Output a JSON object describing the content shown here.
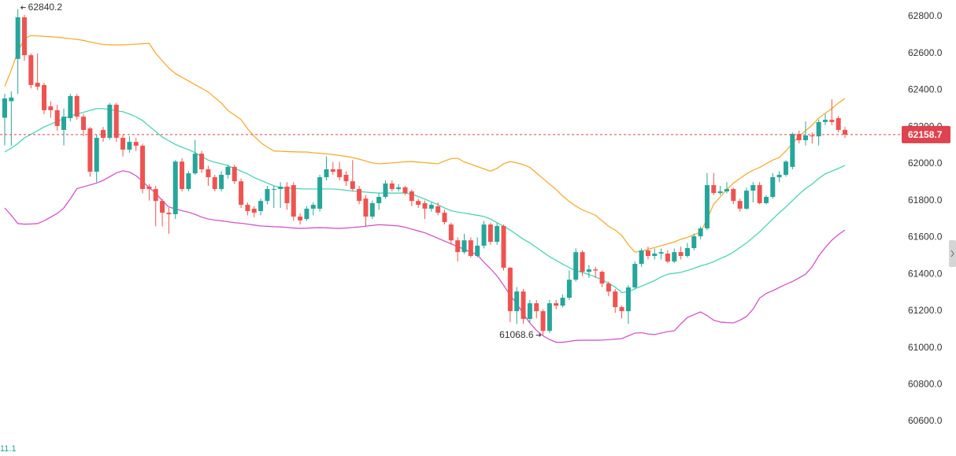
{
  "chart_data": {
    "type": "candlestick",
    "up_color": "#26a69a",
    "down_color": "#ef5350",
    "ylim": [
      60412,
      62890
    ],
    "yticks": [
      {
        "value": 60600,
        "label": "60600.0"
      },
      {
        "value": 60800,
        "label": "60800.0"
      },
      {
        "value": 61000,
        "label": "61000.0"
      },
      {
        "value": 61200,
        "label": "61200.0"
      },
      {
        "value": 61400,
        "label": "61400.0"
      },
      {
        "value": 61600,
        "label": "61600.0"
      },
      {
        "value": 61800,
        "label": "61800.0"
      },
      {
        "value": 62000,
        "label": "62000.0"
      },
      {
        "value": 62200,
        "label": "62200.0"
      },
      {
        "value": 62400,
        "label": "62400.0"
      },
      {
        "value": 62600,
        "label": "62600.0"
      },
      {
        "value": 62800,
        "label": "62800.0"
      }
    ],
    "open": [
      62250,
      62340,
      62570,
      62796,
      62590,
      62440,
      62428,
      62312,
      62291,
      62184,
      62248,
      62368,
      62256,
      62192,
      61957,
      62184,
      62141,
      62321,
      62141,
      62077,
      62119,
      62098,
      61876,
      61863,
      61798,
      61734,
      61726,
      62012,
      61863,
      61948,
      62055,
      61970,
      61927,
      61863,
      61940,
      61983,
      61905,
      61777,
      61756,
      61743,
      61798,
      61863,
      61863,
      61876,
      61884,
      61713,
      61700,
      61756,
      61756,
      61927,
      61970,
      61970,
      61940,
      61905,
      61863,
      61811,
      61713,
      61786,
      61820,
      61893,
      61863,
      61872,
      61850,
      61798,
      61786,
      61756,
      61769,
      61734,
      61670,
      61584,
      61520,
      61584,
      61499,
      61555,
      61670,
      61576,
      61662,
      61435,
      61199,
      61306,
      61157,
      61242,
      61199,
      61092,
      61242,
      61229,
      61272,
      61370,
      61520,
      61413,
      61426,
      61413,
      61349,
      61306,
      61221,
      61199,
      61328,
      61456,
      61529,
      61499,
      61512,
      61512,
      61469,
      61520,
      61499,
      61542,
      61606,
      61649,
      61884,
      61841,
      61850,
      61863,
      61798,
      61756,
      61854,
      61884,
      61786,
      61820,
      61927,
      61940,
      61983,
      62162,
      62128,
      62154,
      62149,
      62227,
      62239,
      62248,
      62184
    ],
    "high": [
      62380,
      62393,
      62840.2,
      62810,
      62600,
      62600,
      62440,
      62340,
      62320,
      62300,
      62380,
      62380,
      62270,
      62200,
      62160,
      62200,
      62330,
      62330,
      62160,
      62150,
      62140,
      62110,
      61890,
      61880,
      61810,
      61760,
      62020,
      62030,
      61960,
      62130,
      62070,
      61990,
      61940,
      61960,
      61995,
      61995,
      61920,
      61790,
      61770,
      61810,
      61880,
      61880,
      61900,
      61900,
      61900,
      61730,
      61770,
      61790,
      61940,
      62040,
      62010,
      62010,
      61960,
      62020,
      61880,
      61830,
      61800,
      61840,
      61910,
      61910,
      61890,
      61880,
      61860,
      61810,
      61800,
      61790,
      61790,
      61750,
      61680,
      61600,
      61620,
      61600,
      61600,
      61690,
      61680,
      61680,
      61670,
      61440,
      61330,
      61320,
      61260,
      61260,
      61210,
      61260,
      61260,
      61290,
      61420,
      61540,
      61530,
      61450,
      61440,
      61420,
      61360,
      61320,
      61230,
      61340,
      61470,
      61540,
      61550,
      61540,
      61540,
      61530,
      61540,
      61550,
      61570,
      61620,
      61660,
      61950,
      61950,
      61880,
      61900,
      61870,
      61810,
      61870,
      61900,
      61900,
      61830,
      61950,
      61960,
      62020,
      62170,
      62180,
      62230,
      62170,
      62240,
      62270,
      62350,
      62260,
      62200
    ],
    "low": [
      62100,
      62098,
      62380,
      62560,
      62410,
      62400,
      62270,
      62250,
      62180,
      62100,
      62230,
      62240,
      62150,
      61930,
      61900,
      62120,
      62130,
      62120,
      62040,
      62060,
      62070,
      61840,
      61800,
      61660,
      61660,
      61620,
      61700,
      61850,
      61850,
      61940,
      61950,
      61880,
      61850,
      61850,
      61920,
      61890,
      61760,
      61720,
      61710,
      61720,
      61780,
      61760,
      61760,
      61750,
      61690,
      61670,
      61690,
      61720,
      61740,
      61910,
      61940,
      61910,
      61880,
      61850,
      61780,
      61660,
      61700,
      61750,
      61810,
      61850,
      61850,
      61830,
      61770,
      61760,
      61700,
      61740,
      61720,
      61670,
      61560,
      61470,
      61510,
      61490,
      61490,
      61540,
      61560,
      61560,
      61420,
      61140,
      61130,
      61130,
      61140,
      61160,
      61068.6,
      61080,
      61210,
      61220,
      61260,
      61360,
      61390,
      61380,
      61380,
      61330,
      61280,
      61190,
      61160,
      61130,
      61320,
      61440,
      61480,
      61480,
      61480,
      61460,
      61460,
      61480,
      61490,
      61530,
      61590,
      61640,
      61830,
      61830,
      61840,
      61780,
      61740,
      61750,
      61790,
      61780,
      61780,
      61810,
      61900,
      61930,
      61970,
      62110,
      62100,
      62110,
      62100,
      62210,
      62210,
      62170,
      62140
    ],
    "close": [
      62355,
      62360,
      62796,
      62590,
      62428,
      62419,
      62291,
      62291,
      62205,
      62256,
      62368,
      62256,
      62184,
      61957,
      62141,
      62141,
      62321,
      62141,
      62077,
      62119,
      62098,
      61863,
      61863,
      61798,
      61734,
      61726,
      62012,
      61863,
      61948,
      62055,
      61970,
      61927,
      61863,
      61940,
      61983,
      61905,
      61777,
      61743,
      61734,
      61798,
      61863,
      61863,
      61876,
      61786,
      61713,
      61692,
      61756,
      61777,
      61927,
      61970,
      61957,
      61927,
      61905,
      61863,
      61798,
      61713,
      61786,
      61820,
      61893,
      61863,
      61872,
      61841,
      61798,
      61777,
      61756,
      61777,
      61734,
      61683,
      61584,
      61520,
      61584,
      61499,
      61555,
      61670,
      61576,
      61662,
      61435,
      61199,
      61306,
      61157,
      61242,
      61199,
      61092,
      61242,
      61229,
      61272,
      61370,
      61520,
      61413,
      61426,
      61420,
      61349,
      61306,
      61221,
      61199,
      61328,
      61456,
      61529,
      61499,
      61512,
      61520,
      61469,
      61520,
      61499,
      61542,
      61606,
      61649,
      61884,
      61841,
      61850,
      61863,
      61798,
      61756,
      61854,
      61884,
      61786,
      61820,
      61927,
      61940,
      62012,
      62162,
      62128,
      62154,
      62149,
      62227,
      62239,
      62227,
      62184,
      62158.7
    ],
    "series": [
      {
        "color": "#f5a623",
        "values": [
          62420,
          62510,
          62610,
          62680,
          62697,
          62695,
          62692,
          62690,
          62688,
          62684,
          62680,
          62676,
          62670,
          62662,
          62655,
          62648,
          62646,
          62646,
          62646,
          62648,
          62650,
          62652,
          62654,
          62600,
          62560,
          62520,
          62490,
          62470,
          62450,
          62430,
          62410,
          62390,
          62360,
          62330,
          62290,
          62265,
          62240,
          62190,
          62150,
          62115,
          62090,
          62070,
          62068,
          62066,
          62065,
          62064,
          62064,
          62060,
          62057,
          62054,
          62050,
          62045,
          62040,
          62034,
          62025,
          62015,
          62005,
          62000,
          62002,
          62005,
          62008,
          62011,
          62012,
          62009,
          62006,
          62003,
          62000,
          62015,
          62028,
          62030,
          62010,
          61998,
          61985,
          61972,
          61960,
          61975,
          62000,
          62012,
          62005,
          61995,
          61980,
          61950,
          61920,
          61890,
          61860,
          61825,
          61795,
          61770,
          61750,
          61735,
          61720,
          61690,
          61660,
          61640,
          61610,
          61560,
          61520,
          61525,
          61535,
          61545,
          61555,
          61565,
          61575,
          61590,
          61600,
          61615,
          61627,
          61700,
          61780,
          61820,
          61860,
          61895,
          61920,
          61945,
          61965,
          61980,
          62000,
          62020,
          62034,
          62070,
          62110,
          62150,
          62180,
          62210,
          62248,
          62275,
          62300,
          62330,
          62355
        ]
      },
      {
        "color": "#3fd1ae",
        "values": [
          62064,
          62085,
          62110,
          62141,
          62160,
          62180,
          62200,
          62215,
          62230,
          62245,
          62260,
          62270,
          62280,
          62290,
          62300,
          62300,
          62295,
          62288,
          62283,
          62270,
          62255,
          62235,
          62205,
          62175,
          62145,
          62125,
          62105,
          62090,
          62077,
          62060,
          62040,
          62020,
          62008,
          62000,
          61990,
          61975,
          61960,
          61945,
          61925,
          61910,
          61895,
          61880,
          61871,
          61868,
          61866,
          61864,
          61863,
          61863,
          61863,
          61863,
          61863,
          61860,
          61856,
          61852,
          61849,
          61846,
          61843,
          61841,
          61841,
          61841,
          61841,
          61841,
          61835,
          61822,
          61808,
          61793,
          61778,
          61760,
          61745,
          61738,
          61732,
          61726,
          61720,
          61714,
          61700,
          61680,
          61660,
          61640,
          61615,
          61590,
          61570,
          61545,
          61520,
          61495,
          61475,
          61455,
          61436,
          61418,
          61410,
          61398,
          61385,
          61370,
          61350,
          61330,
          61300,
          61305,
          61320,
          61335,
          61350,
          61365,
          61385,
          61400,
          61405,
          61410,
          61420,
          61432,
          61445,
          61455,
          61468,
          61485,
          61500,
          61520,
          61545,
          61570,
          61600,
          61630,
          61665,
          61700,
          61734,
          61765,
          61800,
          61835,
          61865,
          61890,
          61920,
          61945,
          61960,
          61975,
          61991
        ]
      },
      {
        "color": "#d048c4",
        "values": [
          61760,
          61720,
          61675,
          61672,
          61673,
          61675,
          61690,
          61710,
          61730,
          61760,
          61810,
          61865,
          61875,
          61885,
          61895,
          61910,
          61930,
          61950,
          61962,
          61955,
          61935,
          61905,
          61870,
          61840,
          61800,
          61765,
          61755,
          61745,
          61737,
          61725,
          61710,
          61700,
          61694,
          61690,
          61685,
          61680,
          61677,
          61672,
          61667,
          61662,
          61660,
          61658,
          61657,
          61654,
          61651,
          61649,
          61650,
          61652,
          61653,
          61652,
          61650,
          61649,
          61651,
          61654,
          61657,
          61661,
          61665,
          61669,
          61667,
          61665,
          61662,
          61655,
          61645,
          61635,
          61625,
          61610,
          61595,
          61580,
          61565,
          61550,
          61535,
          61520,
          61505,
          61465,
          61430,
          61390,
          61340,
          61285,
          61240,
          61185,
          61135,
          61095,
          61065,
          61045,
          61030,
          61030,
          61035,
          61040,
          61041,
          61041,
          61041,
          61042,
          61044,
          61047,
          61050,
          61065,
          61080,
          61082,
          61075,
          61072,
          61080,
          61088,
          61092,
          61130,
          61165,
          61180,
          61195,
          61175,
          61150,
          61140,
          61137,
          61135,
          61150,
          61170,
          61210,
          61270,
          61295,
          61310,
          61328,
          61345,
          61360,
          61380,
          61400,
          61440,
          61499,
          61545,
          61585,
          61615,
          61640
        ]
      }
    ],
    "max_label": {
      "value": 62840.2,
      "label": "62840.2"
    },
    "min_label": {
      "value": 61068.6,
      "label": "61068.6"
    },
    "last_price": {
      "value": 62158.7,
      "label": "62158.7",
      "color": "#e0424f"
    },
    "corner_text": "11.1"
  }
}
